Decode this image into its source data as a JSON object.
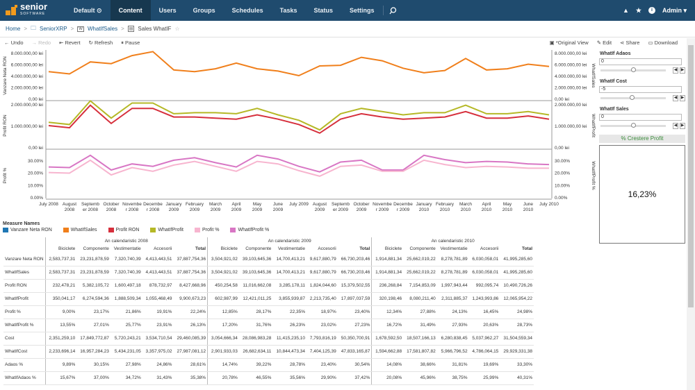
{
  "nav": {
    "brand": "senior",
    "brand_sub": "SOFTWARE",
    "items": [
      "Default",
      "Content",
      "Users",
      "Groups",
      "Schedules",
      "Tasks",
      "Status",
      "Settings"
    ],
    "active": "Content",
    "user": "Admin"
  },
  "breadcrumb": [
    "Home",
    "SeniorXRP",
    "WhatIfSales",
    "Sales WhatIF"
  ],
  "toolbar": {
    "undo": "Undo",
    "redo": "Redo",
    "revert": "Revert",
    "refresh": "Refresh",
    "pause": "Pause",
    "original": "*Original View",
    "edit": "Edit",
    "share": "Share",
    "download": "Download"
  },
  "panel": {
    "whatif_adaos_label": "WhatIf Adaos",
    "whatif_adaos_value": "0",
    "whatif_cost_label": "WhatIf Cost",
    "whatif_cost_value": "-5",
    "whatif_sales_label": "WhatIf Sales",
    "whatif_sales_value": "0",
    "kpi_title": "% Crestere Profit",
    "kpi_value": "16,23%"
  },
  "chart_data": {
    "type": "line",
    "x": [
      "July 2008",
      "August 2008",
      "September 2008",
      "October 2008",
      "November 2008",
      "December 2008",
      "January 2009",
      "February 2009",
      "March 2009",
      "April 2009",
      "May 2009",
      "June 2009",
      "July 2009",
      "August 2009",
      "September 2009",
      "October 2009",
      "November 2009",
      "December 2009",
      "January 2010",
      "February 2010",
      "March 2010",
      "April 2010",
      "May 2010",
      "June 2010",
      "July 2010"
    ],
    "x_tick_labels": [
      [
        "July 2008",
        ""
      ],
      [
        "August",
        "2008"
      ],
      [
        "Septemb",
        "er 2008"
      ],
      [
        "October",
        "2008"
      ],
      [
        "Novembe",
        "r 2008"
      ],
      [
        "Decembe",
        "r 2008"
      ],
      [
        "January",
        "2009"
      ],
      [
        "February",
        "2009"
      ],
      [
        "March",
        "2009"
      ],
      [
        "April",
        "2009"
      ],
      [
        "May",
        "2009"
      ],
      [
        "June",
        "2009"
      ],
      [
        "July 2009",
        ""
      ],
      [
        "August",
        "2009"
      ],
      [
        "Septemb",
        "er 2009"
      ],
      [
        "October",
        "2009"
      ],
      [
        "Novembe",
        "r 2009"
      ],
      [
        "Decembe",
        "r 2009"
      ],
      [
        "January",
        "2010"
      ],
      [
        "February",
        "2010"
      ],
      [
        "March",
        "2010"
      ],
      [
        "April",
        "2010"
      ],
      [
        "May",
        "2010"
      ],
      [
        "June",
        "2010"
      ],
      [
        "July 2010",
        ""
      ]
    ],
    "panes": [
      {
        "ylabel": "Vanzare Neta RON",
        "ylabel_right": "WhatIfSales",
        "ylim": [
          0,
          8000000
        ],
        "yticks": [
          "8.000.000,00 lei",
          "6.000.000,00 lei",
          "4.000.000,00 lei",
          "2.000.000,00 lei",
          "0,00 lei"
        ],
        "series": [
          {
            "name": "WhatIfSales",
            "color": "#f07f1b",
            "values": [
              4700000,
              4300000,
              6400000,
              6100000,
              7500000,
              8200000,
              5000000,
              4700000,
              5200000,
              6200000,
              5200000,
              4800000,
              4000000,
              5700000,
              5800000,
              7200000,
              6600000,
              5300000,
              4500000,
              4900000,
              7000000,
              5000000,
              5200000,
              6000000,
              5600000
            ]
          }
        ]
      },
      {
        "ylabel": "Profit RON",
        "ylabel_right": "WhatIfProfit",
        "ylim": [
          0,
          2000000
        ],
        "yticks": [
          "2.000.000,00 lei",
          "1.000.000,00 lei",
          "0,00 lei"
        ],
        "series": [
          {
            "name": "WhatIfProfit",
            "color": "#b5b826",
            "values": [
              1150000,
              1050000,
              2150000,
              1350000,
              2050000,
              2050000,
              1550000,
              1600000,
              1600000,
              1550000,
              1800000,
              1500000,
              1250000,
              800000,
              1550000,
              1800000,
              1650000,
              1500000,
              1600000,
              1600000,
              1950000,
              1550000,
              1550000,
              1650000,
              1500000
            ]
          },
          {
            "name": "Profit RON",
            "color": "#d62f3c",
            "values": [
              1000000,
              900000,
              1950000,
              1100000,
              1800000,
              1800000,
              1400000,
              1400000,
              1350000,
              1300000,
              1500000,
              1300000,
              1050000,
              650000,
              1300000,
              1550000,
              1400000,
              1300000,
              1350000,
              1400000,
              1650000,
              1350000,
              1350000,
              1450000,
              1300000
            ]
          }
        ]
      },
      {
        "ylabel": "Profit %",
        "ylabel_right": "WhatIfProfit %",
        "ylim": [
          0,
          0.35
        ],
        "yticks": [
          "30.00%",
          "20.00%",
          "10.00%",
          "0.00%"
        ],
        "series": [
          {
            "name": "WhatIfProfit %",
            "color": "#d876c4",
            "values": [
              0.245,
              0.24,
              0.34,
              0.22,
              0.27,
              0.25,
              0.3,
              0.32,
              0.28,
              0.245,
              0.34,
              0.31,
              0.25,
              0.205,
              0.285,
              0.3,
              0.22,
              0.22,
              0.34,
              0.305,
              0.28,
              0.29,
              0.285,
              0.27,
              0.265
            ]
          },
          {
            "name": "Profit %",
            "color": "#f7b5cf",
            "values": [
              0.2,
              0.195,
              0.3,
              0.18,
              0.24,
              0.21,
              0.26,
              0.29,
              0.25,
              0.21,
              0.29,
              0.27,
              0.215,
              0.17,
              0.25,
              0.26,
              0.21,
              0.21,
              0.3,
              0.265,
              0.24,
              0.25,
              0.245,
              0.235,
              0.235
            ]
          }
        ]
      }
    ]
  },
  "legend": {
    "title": "Measure Names",
    "items": [
      {
        "name": "Vanzare Neta RON",
        "color": "#1f77b4"
      },
      {
        "name": "WhatIfSales",
        "color": "#f07f1b"
      },
      {
        "name": "Profit RON",
        "color": "#d62f3c"
      },
      {
        "name": "WhatIfProfit",
        "color": "#b5b826"
      },
      {
        "name": "Profit %",
        "color": "#f7b5cf"
      },
      {
        "name": "WhatIfProfit %",
        "color": "#d876c4"
      }
    ]
  },
  "table": {
    "years": [
      "An calendaristic 2008",
      "An calendaristic 2009",
      "An calendaristic 2010"
    ],
    "columns": [
      "Biciclete",
      "Componente",
      "Vestimentatie",
      "Accesorii",
      "Total"
    ],
    "rows": [
      {
        "label": "Vanzare Neta RON",
        "values": [
          "2,583,737,31",
          "23,231,878,59",
          "7,320,740,39",
          "4,413,443,51",
          "37,887,754,36",
          "3,504,921,02",
          "39,103,645,36",
          "14,700,413,21",
          "9,617,880,79",
          "66,730,203,46",
          "1,914,881,34",
          "25,662,019,22",
          "8,278,781,89",
          "6,030,058,01",
          "41,995,285,60"
        ]
      },
      {
        "label": "WhatIfSales",
        "values": [
          "2,583,737,31",
          "23,231,878,59",
          "7,320,740,39",
          "4,413,443,51",
          "37,887,754,36",
          "3,504,921,02",
          "39,103,645,36",
          "14,700,413,21",
          "9,617,880,79",
          "66,730,203,46",
          "1,914,881,34",
          "25,662,019,22",
          "8,278,781,89",
          "6,030,058,01",
          "41,995,285,60"
        ]
      },
      {
        "label": "Profit RON",
        "values": [
          "232,478,21",
          "5,382,105,72",
          "1,600,497,18",
          "878,732,97",
          "8,427,668,96",
          "450,254,58",
          "11,016,662,08",
          "3,285,178,11",
          "1,824,044,60",
          "15,379,502,55",
          "236,268,84",
          "7,154,853,09",
          "1,997,943,44",
          "992,095,74",
          "10,490,726,26"
        ]
      },
      {
        "label": "WhatIfProfit",
        "values": [
          "350,041,17",
          "6,274,594,36",
          "1,888,509,34",
          "1,055,468,49",
          "9,900,673,23",
          "602,987,99",
          "12,421,011,25",
          "3,855,939,87",
          "2,213,735,40",
          "17,897,037,59",
          "320,198,46",
          "8,080,211,40",
          "2,311,885,37",
          "1,243,993,86",
          "12,065,954,22"
        ]
      },
      {
        "label": "Profit %",
        "values": [
          "9,00%",
          "23,17%",
          "21,86%",
          "19,91%",
          "22,24%",
          "12,85%",
          "28,17%",
          "22,35%",
          "18,97%",
          "23,40%",
          "12,34%",
          "27,88%",
          "24,13%",
          "16,45%",
          "24,98%"
        ]
      },
      {
        "label": "WhatIfProfit %",
        "values": [
          "13,55%",
          "27,01%",
          "25,77%",
          "23,91%",
          "26,13%",
          "17,20%",
          "31,76%",
          "26,23%",
          "23,02%",
          "27,23%",
          "16,72%",
          "31,49%",
          "27,93%",
          "20,63%",
          "28,73%"
        ]
      },
      {
        "label": "Cost",
        "values": [
          "2,351,259,10",
          "17,849,772,87",
          "5,720,243,21",
          "3,534,710,54",
          "29,460,085,39",
          "3,054,666,34",
          "28,086,983,28",
          "11,415,235,10",
          "7,793,816,19",
          "50,350,700,91",
          "1,678,592,50",
          "18,507,166,13",
          "6,280,838,45",
          "5,037,962,27",
          "31,504,559,34"
        ]
      },
      {
        "label": "WhatIfCost",
        "values": [
          "2,233,696,14",
          "16,957,284,23",
          "5,434,231,05",
          "3,357,975,02",
          "27,987,081,12",
          "2,901,933,03",
          "26,682,634,11",
          "10,844,473,34",
          "7,404,125,39",
          "47,833,165,87",
          "1,594,662,88",
          "17,581,807,82",
          "5,966,796,52",
          "4,786,064,15",
          "29,929,331,38"
        ]
      },
      {
        "label": "Adaos %",
        "values": [
          "9,89%",
          "30,15%",
          "27,98%",
          "24,86%",
          "28,61%",
          "14,74%",
          "39,22%",
          "28,78%",
          "23,40%",
          "30,54%",
          "14,08%",
          "38,66%",
          "31,81%",
          "19,69%",
          "33,30%"
        ]
      },
      {
        "label": "WhatIfAdaos %",
        "values": [
          "15,67%",
          "37,00%",
          "34,72%",
          "31,43%",
          "35,38%",
          "20,78%",
          "46,55%",
          "35,56%",
          "29,90%",
          "37,42%",
          "20,08%",
          "45,96%",
          "38,75%",
          "25,99%",
          "40,31%"
        ]
      }
    ]
  }
}
